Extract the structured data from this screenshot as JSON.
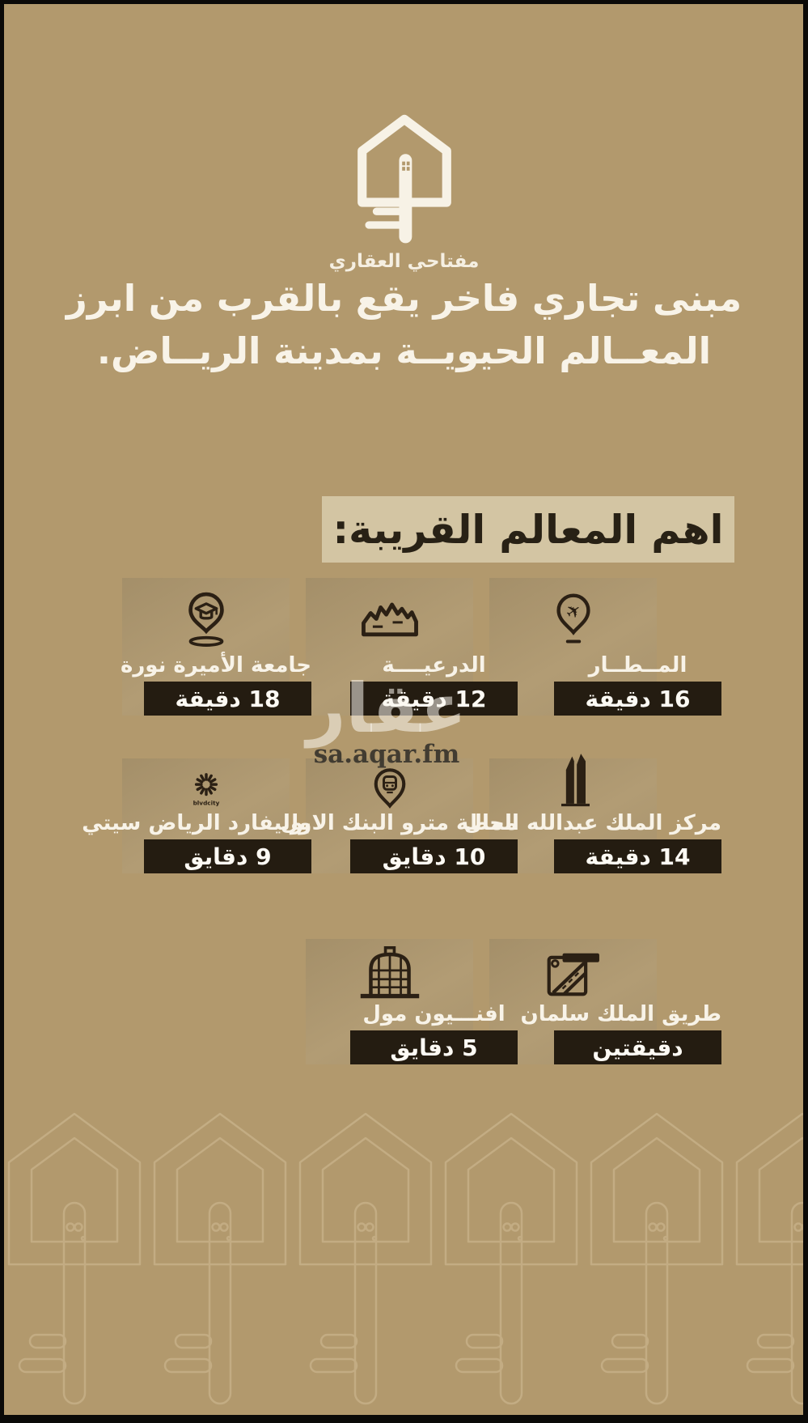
{
  "brand": {
    "logo_text": "مفتاحي العقاري",
    "logo_icon": "house-key-logo-icon"
  },
  "headline": {
    "line1": "مبنى تجاري فاخر يقع  بالقرب من ابرز",
    "line2": "المعــالم الحيويــة بمدينة الريــاض."
  },
  "section": {
    "title": "اهم المعالم القريبة:"
  },
  "cards": [
    {
      "label": "المــطــار",
      "time": "16 دقيقة",
      "icon": "airport-pin-icon"
    },
    {
      "label": "الدرعيــــة",
      "time": "12 دقيقة",
      "icon": "diriyah-mountains-icon"
    },
    {
      "label": "جامعة الأميرة نورة",
      "time": "18 دقيقة",
      "icon": "university-pin-icon"
    },
    {
      "label": "مركز الملك عبدالله المال",
      "time": "14 دقيقة",
      "icon": "kafd-tower-icon"
    },
    {
      "label": "محطة مترو البنك الاول",
      "time": "10 دقايق",
      "icon": "metro-pin-icon"
    },
    {
      "label": "بوليفارد الرياض سيتي",
      "time": "9 دقايق",
      "icon": "boulevard-city-icon",
      "icon_caption": "blvdcity"
    },
    {
      "label": "طريق الملك سلمان",
      "time": "دقيقتين",
      "icon": "highway-sign-icon"
    },
    {
      "label": "افنـــيون مول",
      "time": "5 دقايق",
      "icon": "mall-building-icon"
    }
  ],
  "watermark": {
    "arabic": "عقار",
    "domain": "sa.aqar.fm"
  },
  "colors": {
    "background": "#b2996d",
    "title_box": "#d3c5a3",
    "time_bar": "#241c11",
    "icon_dark": "#2b2014",
    "text_light": "#f8f3e8",
    "pattern_stroke": "#c6b088",
    "frame": "#0b0a08"
  }
}
